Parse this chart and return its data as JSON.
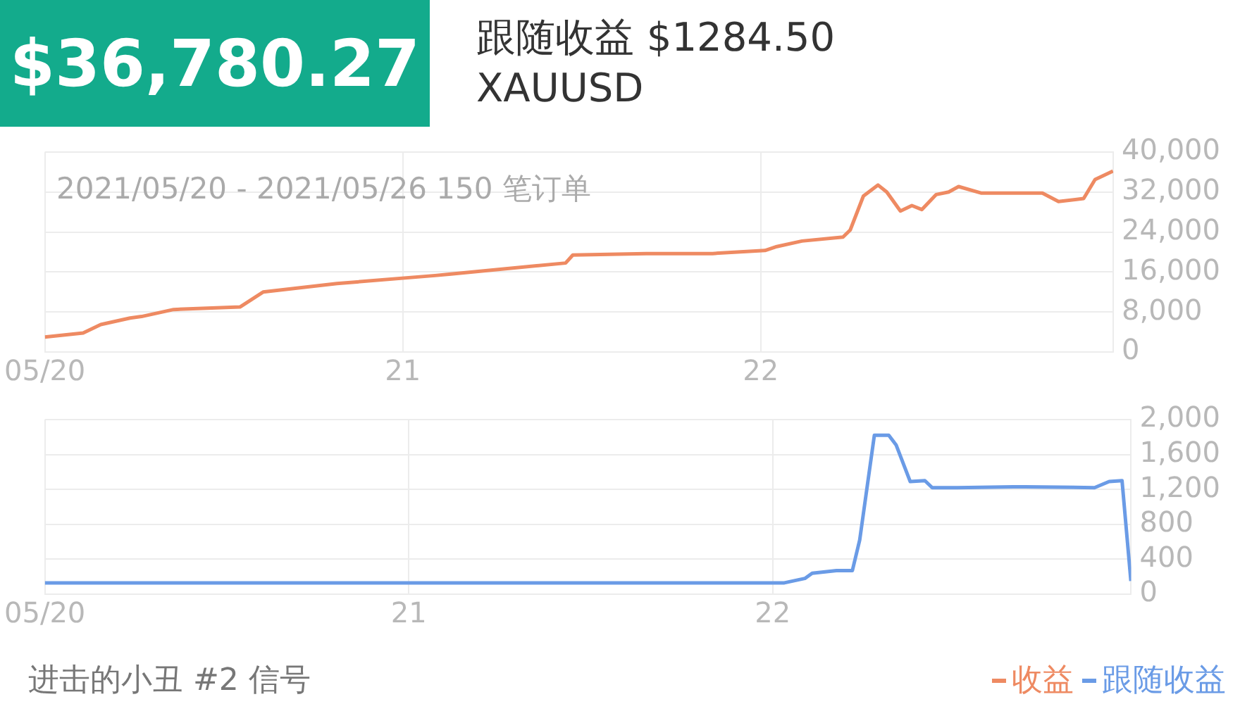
{
  "chart_data": [
    {
      "type": "line",
      "title": "$36,780.27",
      "subtitle": "跟随收益 $1284.50",
      "annotations": [
        "XAUUSD",
        "2021/05/20 - 2021/05/26 150 笔订单"
      ],
      "x": [
        "2021-05-20T00:00",
        "2021-05-20T02:34",
        "2021-05-20T03:45",
        "2021-05-20T05:43",
        "2021-05-20T06:29",
        "2021-05-20T08:38",
        "2021-05-20T13:05",
        "2021-05-20T14:38",
        "2021-05-20T19:35",
        "2021-05-21T02:10",
        "2021-05-21T03:14",
        "2021-05-21T10:55",
        "2021-05-21T11:24",
        "2021-05-21T16:19",
        "2021-05-21T20:46",
        "2021-05-22T00:17",
        "2021-05-22T01:05",
        "2021-05-22T02:46",
        "2021-05-22T05:31",
        "2021-05-22T06:00",
        "2021-05-22T06:53",
        "2021-05-22T07:52",
        "2021-05-22T08:27",
        "2021-05-22T09:22",
        "2021-05-22T10:08",
        "2021-05-22T10:48",
        "2021-05-22T11:46",
        "2021-05-22T12:36",
        "2021-05-22T13:16",
        "2021-05-22T14:46",
        "2021-05-22T18:53",
        "2021-05-22T19:58",
        "2021-05-22T21:39",
        "2021-05-22T22:25",
        "2021-05-22T23:37"
      ],
      "series": [
        {
          "name": "收益",
          "color": "#ee8a62",
          "values": [
            3000,
            3800,
            5500,
            6800,
            7100,
            8500,
            9000,
            12000,
            13700,
            15300,
            15600,
            17800,
            19400,
            19700,
            19700,
            20300,
            21100,
            22200,
            23000,
            24400,
            31200,
            33400,
            32000,
            28200,
            29300,
            28500,
            31500,
            32000,
            33100,
            31800,
            31800,
            30100,
            30700,
            34500,
            36200
          ]
        }
      ],
      "xlim": [
        "2021-05-20",
        "2021-05-22T23:38"
      ],
      "xticks": [
        {
          "value": "2021-05-20",
          "label": "05/20"
        },
        {
          "value": "2021-05-21",
          "label": "21"
        },
        {
          "value": "2021-05-22",
          "label": "22"
        }
      ],
      "ylim": [
        0,
        40000
      ],
      "yticks": [
        0,
        {
          "value": 8000,
          "label": "8,000"
        },
        {
          "value": 16000,
          "label": "16,000"
        },
        {
          "value": 24000,
          "label": "24,000"
        },
        {
          "value": 32000,
          "label": "32,000"
        },
        {
          "value": 40000,
          "label": "40,000"
        }
      ],
      "grid": true,
      "legend": "bottom right"
    },
    {
      "type": "line",
      "annotations": [
        "进击的小丑 #2 信号"
      ],
      "x": [
        "2021-05-20T00:00",
        "2021-05-22T00:46",
        "2021-05-22T02:07",
        "2021-05-22T02:36",
        "2021-05-22T04:12",
        "2021-05-22T05:15",
        "2021-05-22T05:44",
        "2021-05-22T06:42",
        "2021-05-22T07:39",
        "2021-05-22T08:08",
        "2021-05-22T09:04",
        "2021-05-22T10:02",
        "2021-05-22T10:31",
        "2021-05-22T12:09",
        "2021-05-22T15:52",
        "2021-05-22T16:38",
        "2021-05-22T21:13",
        "2021-05-22T22:11",
        "2021-05-22T23:02",
        "2021-05-22T23:37"
      ],
      "series": [
        {
          "name": "跟随收益",
          "color": "#6a9be6",
          "values": [
            130,
            130,
            180,
            240,
            270,
            270,
            620,
            1820,
            1820,
            1710,
            1290,
            1300,
            1220,
            1220,
            1230,
            1230,
            1220,
            1290,
            1300,
            150
          ]
        }
      ],
      "xlim": [
        "2021-05-20",
        "2021-05-22T23:38"
      ],
      "xticks": [
        {
          "value": "2021-05-20",
          "label": "05/20"
        },
        {
          "value": "2021-05-21",
          "label": "21"
        },
        {
          "value": "2021-05-22",
          "label": "22"
        }
      ],
      "ylim": [
        0,
        2000
      ],
      "yticks": [
        0,
        400,
        800,
        {
          "value": 1200,
          "label": "1,200"
        },
        {
          "value": 1600,
          "label": "1,600"
        },
        {
          "value": 2000,
          "label": "2,000"
        }
      ],
      "grid": true,
      "legend": "bottom right"
    }
  ]
}
